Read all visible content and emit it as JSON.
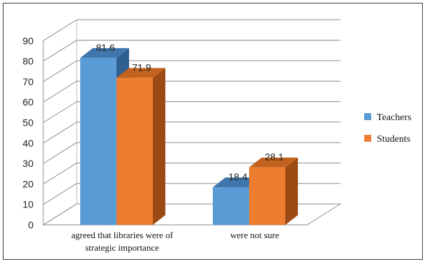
{
  "chart_data": {
    "type": "bar",
    "style": "3d-clustered-column",
    "categories": [
      "agreed that libraries were of strategic importance",
      "were not sure"
    ],
    "category_label_lines": [
      [
        "agreed that libraries were of",
        "strategic importance"
      ],
      [
        "were not sure"
      ]
    ],
    "series": [
      {
        "name": "Teachers",
        "values": [
          81.6,
          18.4
        ],
        "color": "#5b9bd5",
        "side_color": "#2e5f8e",
        "top_color": "#3f77ad"
      },
      {
        "name": "Students",
        "values": [
          71.9,
          28.1
        ],
        "color": "#ed7d31",
        "side_color": "#9c4a14",
        "top_color": "#c4621f"
      }
    ],
    "data_labels": [
      [
        "81.6",
        "18.4"
      ],
      [
        "71.9",
        "28.1"
      ]
    ],
    "ylim": [
      0,
      90
    ],
    "yticks": [
      "0",
      "10",
      "20",
      "30",
      "40",
      "50",
      "60",
      "70",
      "80",
      "90"
    ],
    "grid": true,
    "legend_position": "right",
    "title": "",
    "xlabel": "",
    "ylabel": ""
  }
}
